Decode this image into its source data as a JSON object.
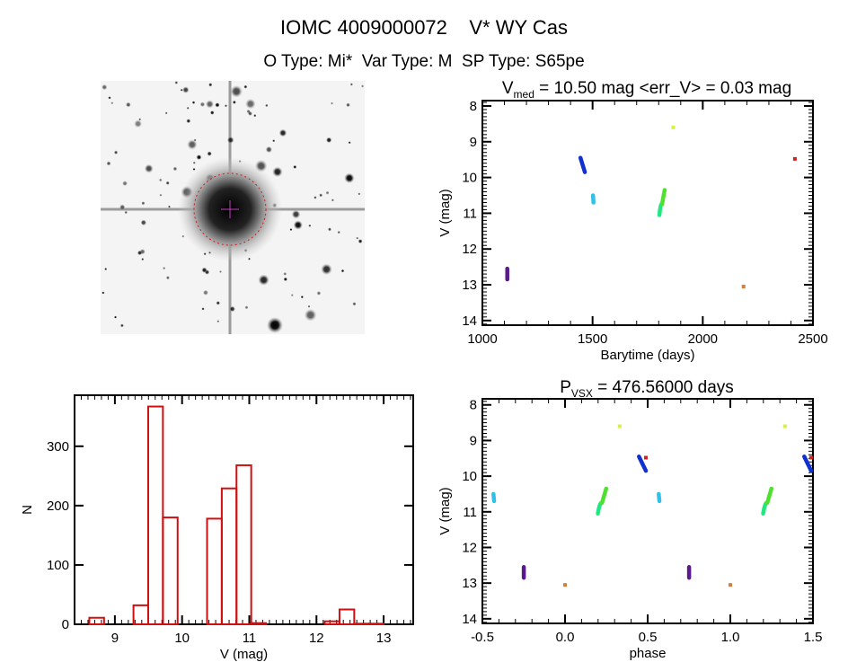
{
  "header": {
    "title": "IOMC 4009000072    V* WY Cas",
    "subtitle": "O Type: Mi*  Var Type: M  SP Type: S65pe"
  },
  "colors": {
    "hist": "#d01010",
    "circle": "#d02020",
    "cross": "#c040c0"
  },
  "chart_data": [
    {
      "id": "finder-image",
      "type": "image",
      "description_marks": "star field with target marked by red dashed circle"
    },
    {
      "id": "light-curve",
      "type": "scatter",
      "title_main": "V",
      "title_sub": "med",
      "title_rest": " = 10.50 mag <err_V> = 0.03 mag",
      "xlabel": "Barytime (days)",
      "ylabel": "V (mag)",
      "xlim": [
        1000,
        2500
      ],
      "ylim": [
        14.13,
        7.85
      ],
      "xticks": [
        "1000",
        "1500",
        "2000",
        "2500"
      ],
      "xtick_values": [
        1000,
        1500,
        2000,
        2500
      ],
      "yticks": [
        "8",
        "9",
        "10",
        "11",
        "12",
        "13",
        "14"
      ],
      "ytick_values": [
        8,
        9,
        10,
        11,
        12,
        13,
        14
      ],
      "series": [
        {
          "name": "season-1",
          "color": "#5a1a8a",
          "t": [
            1113,
            1113,
            1113,
            1113
          ],
          "v": [
            12.55,
            12.65,
            12.75,
            12.85
          ]
        },
        {
          "name": "season-2",
          "color": "#1030d0",
          "t": [
            1445,
            1450,
            1455,
            1460,
            1465
          ],
          "v": [
            9.45,
            9.55,
            9.65,
            9.75,
            9.85
          ]
        },
        {
          "name": "season-3",
          "color": "#30c0e8",
          "t": [
            1502,
            1503,
            1504
          ],
          "v": [
            10.5,
            10.6,
            10.7
          ]
        },
        {
          "name": "season-4",
          "color": "#20e880",
          "t": [
            1803,
            1806,
            1809,
            1812
          ],
          "v": [
            11.05,
            10.9,
            10.8,
            10.75
          ]
        },
        {
          "name": "season-5",
          "color": "#50e030",
          "t": [
            1815,
            1818,
            1821,
            1824,
            1827
          ],
          "v": [
            10.75,
            10.65,
            10.55,
            10.45,
            10.35
          ]
        },
        {
          "name": "season-6",
          "color": "#d8f040",
          "t": [
            1866
          ],
          "v": [
            8.6
          ]
        },
        {
          "name": "season-7",
          "color": "#d08040",
          "t": [
            2185
          ],
          "v": [
            13.05
          ]
        },
        {
          "name": "season-8",
          "color": "#d02020",
          "t": [
            2418
          ],
          "v": [
            9.48
          ]
        }
      ]
    },
    {
      "id": "histogram",
      "type": "bar",
      "xlabel": "V (mag)",
      "ylabel": "N",
      "xlim": [
        8.4,
        13.44
      ],
      "ylim": [
        0,
        386
      ],
      "xticks": [
        "9",
        "10",
        "11",
        "12",
        "13"
      ],
      "xtick_values": [
        9,
        10,
        11,
        12,
        13
      ],
      "yticks": [
        "0",
        "100",
        "200",
        "300"
      ],
      "ytick_values": [
        0,
        100,
        200,
        300
      ],
      "bin_start": 8.62,
      "bin_width": 0.219,
      "values": [
        11,
        0,
        0,
        32,
        367,
        180,
        0,
        0,
        178,
        229,
        268,
        2,
        0,
        0,
        0,
        0,
        5,
        25,
        1,
        1
      ]
    },
    {
      "id": "phase-curve",
      "type": "scatter",
      "title_main": "P",
      "title_sub": "VSX",
      "title_rest": " = 476.56000 days",
      "period": 476.56,
      "epoch": 2185,
      "xlabel": "phase",
      "ylabel": "V (mag)",
      "xlim": [
        -0.5,
        1.5
      ],
      "ylim": [
        14.13,
        7.83
      ],
      "xticks": [
        "-0.5",
        "0.0",
        "0.5",
        "1.0",
        "1.5"
      ],
      "xtick_values": [
        -0.5,
        0,
        0.5,
        1,
        1.5
      ],
      "yticks": [
        "8",
        "9",
        "10",
        "11",
        "12",
        "13",
        "14"
      ],
      "ytick_values": [
        8,
        9,
        10,
        11,
        12,
        13,
        14
      ]
    }
  ]
}
